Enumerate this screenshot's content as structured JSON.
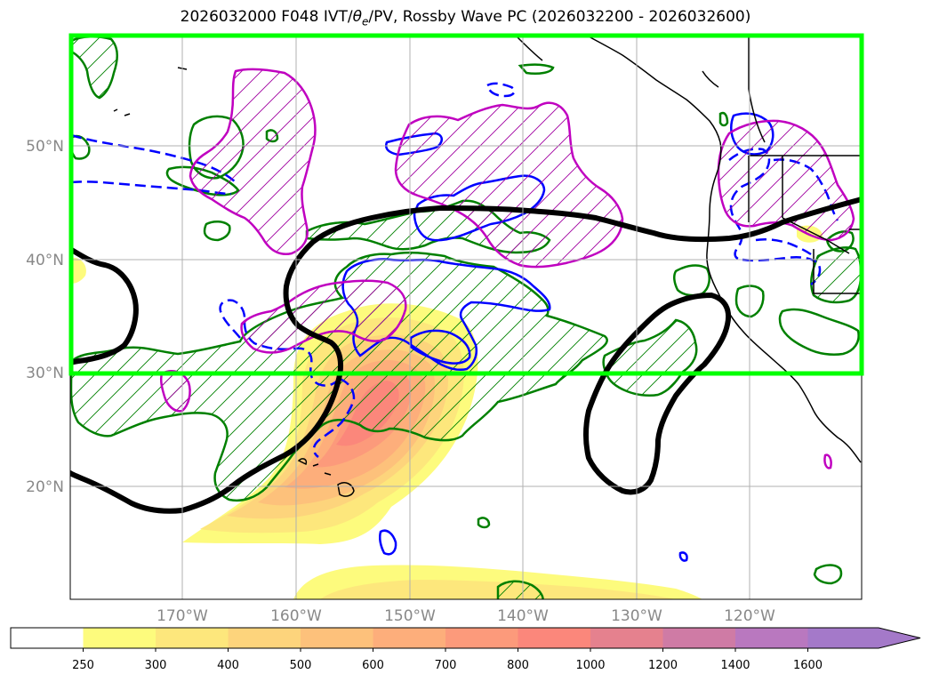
{
  "title": "2026032000 F048 IVT/θe/PV, Rossby Wave PC (2026032200 - 2026032600)",
  "title_parts": {
    "before": "2026032000 F048 IVT/",
    "theta": "θ",
    "sub": "e",
    "after": "/PV, Rossby Wave PC (2026032200 - 2026032600)"
  },
  "lon_labels": [
    "170°W",
    "160°W",
    "150°W",
    "140°W",
    "130°W",
    "120°W"
  ],
  "lat_labels": [
    "50°N",
    "40°N",
    "30°N",
    "20°N"
  ],
  "colorbar": {
    "labels": [
      "250",
      "300",
      "400",
      "500",
      "600",
      "700",
      "800",
      "1000",
      "1200",
      "1400",
      "1600"
    ],
    "colors": [
      "#ffffff",
      "#fdfb7d",
      "#fde77c",
      "#fdd47c",
      "#fdc17b",
      "#fdae7b",
      "#fc9a7b",
      "#fb877b",
      "#e5818e",
      "#cf7ba5",
      "#b978bf",
      "#a479c9"
    ],
    "extend": "max"
  },
  "colors": {
    "highlight_box": "#00ff00",
    "pc_positive": "#008000",
    "pc_negative": "#0000ff",
    "pv": "#c000c0",
    "theta_e": "#000000",
    "coastline": "#000000",
    "gridline": "#b0b0b0"
  }
}
